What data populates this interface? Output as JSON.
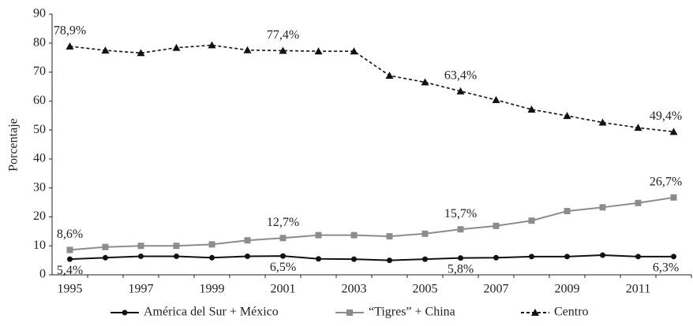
{
  "chart_data": {
    "type": "line",
    "y_label": "Porcentaje",
    "categories": [
      "1995",
      null,
      "1997",
      null,
      "1999",
      null,
      "2001",
      null,
      "2003",
      null,
      "2005",
      null,
      "2007",
      null,
      "2009",
      null,
      "2011",
      null
    ],
    "ylim": [
      0,
      90
    ],
    "yticks": [
      0,
      10,
      20,
      30,
      40,
      50,
      60,
      70,
      80,
      90
    ],
    "series": [
      {
        "name": "América del Sur + México",
        "color": "#111111",
        "marker": "circle",
        "dash": false,
        "values": [
          5.4,
          5.9,
          6.4,
          6.4,
          5.9,
          6.4,
          6.5,
          5.5,
          5.4,
          5.0,
          5.4,
          5.8,
          5.9,
          6.3,
          6.3,
          6.8,
          6.3,
          6.3
        ],
        "value_labels": [
          "5,4%",
          null,
          null,
          null,
          null,
          null,
          "6,5%",
          null,
          null,
          null,
          null,
          "5,8%",
          null,
          null,
          null,
          null,
          null,
          "6,3%"
        ]
      },
      {
        "name": "“Tigres” + China",
        "color": "#8c8c8c",
        "marker": "square",
        "dash": false,
        "values": [
          8.6,
          9.6,
          10.0,
          10.0,
          10.5,
          11.9,
          12.7,
          13.7,
          13.7,
          13.3,
          14.2,
          15.7,
          16.9,
          18.7,
          22.0,
          23.3,
          24.8,
          26.7
        ],
        "value_labels": [
          "8,6%",
          null,
          null,
          null,
          null,
          null,
          "12,7%",
          null,
          null,
          null,
          null,
          "15,7%",
          null,
          null,
          null,
          null,
          null,
          "26,7%"
        ]
      },
      {
        "name": "Centro",
        "color": "#111111",
        "marker": "triangle",
        "dash": true,
        "values": [
          78.9,
          77.5,
          76.6,
          78.4,
          79.3,
          77.6,
          77.4,
          77.2,
          77.2,
          68.8,
          66.5,
          63.4,
          60.4,
          57.1,
          54.9,
          52.6,
          50.8,
          49.4
        ],
        "value_labels": [
          "78,9%",
          null,
          null,
          null,
          null,
          null,
          "77,4%",
          null,
          null,
          null,
          null,
          "63,4%",
          null,
          null,
          null,
          null,
          null,
          "49,4%"
        ]
      }
    ]
  }
}
